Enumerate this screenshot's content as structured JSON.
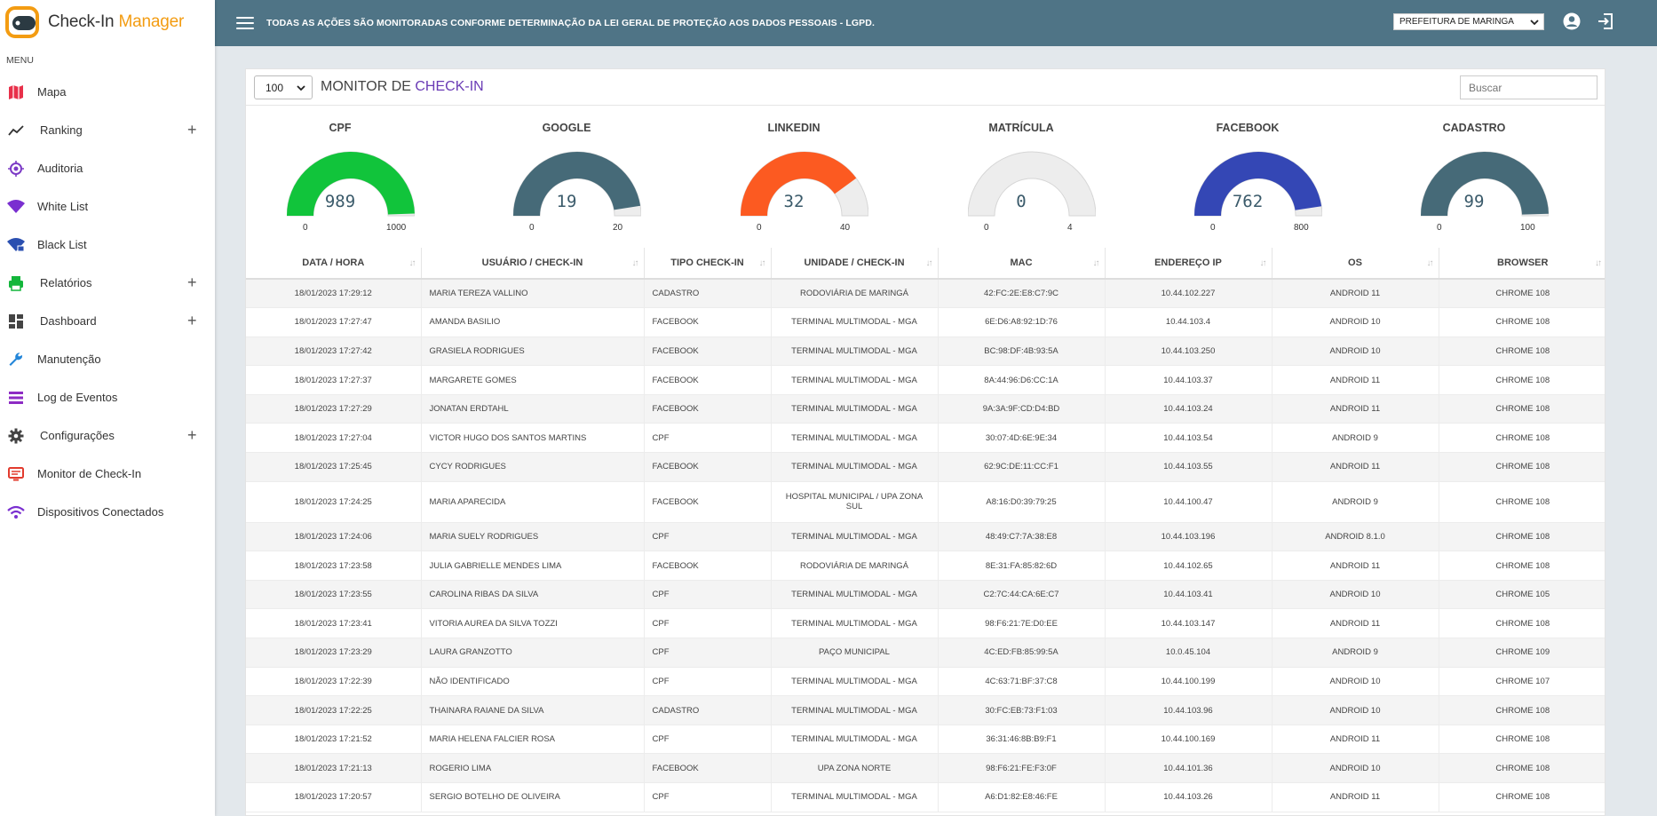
{
  "app": {
    "title_main": "Check-In ",
    "title_accent": "Manager"
  },
  "menu": {
    "header": "MENU",
    "items": [
      {
        "label": "Mapa",
        "icon": "map-icon",
        "expandable": false
      },
      {
        "label": "Ranking",
        "icon": "trending-icon",
        "expandable": true
      },
      {
        "label": "Auditoria",
        "icon": "target-icon",
        "expandable": false
      },
      {
        "label": "White List",
        "icon": "wifi-icon",
        "expandable": false
      },
      {
        "label": "Black List",
        "icon": "wifi-lock-icon",
        "expandable": false
      },
      {
        "label": "Relatórios",
        "icon": "printer-icon",
        "expandable": true
      },
      {
        "label": "Dashboard",
        "icon": "dashboard-icon",
        "expandable": true
      },
      {
        "label": "Manutenção",
        "icon": "wrench-icon",
        "expandable": false
      },
      {
        "label": "Log de Eventos",
        "icon": "list-icon",
        "expandable": false
      },
      {
        "label": "Configurações",
        "icon": "gear-icon",
        "expandable": true
      },
      {
        "label": "Monitor de Check-In",
        "icon": "monitor-icon",
        "expandable": false
      },
      {
        "label": "Dispositivos Conectados",
        "icon": "wifi-icon",
        "expandable": false
      }
    ]
  },
  "topbar": {
    "notice": "TODAS AS AÇÕES SÃO MONITORADAS CONFORME DETERMINAÇÃO DA LEI GERAL DE PROTEÇÃO AOS DADOS PESSOAIS - LGPD.",
    "city": "PREFEITURA DE MARINGA"
  },
  "card": {
    "page_size": "100",
    "title_main": "MONITOR DE ",
    "title_accent": "CHECK-IN",
    "search_placeholder": "Buscar"
  },
  "gauges": [
    {
      "label": "CPF",
      "value": 989,
      "min": 0,
      "max": 1000,
      "color": "#11c43b"
    },
    {
      "label": "GOOGLE",
      "value": 19,
      "min": 0,
      "max": 20,
      "color": "#466a78"
    },
    {
      "label": "LINKEDIN",
      "value": 32,
      "min": 0,
      "max": 40,
      "color": "#fc5a21"
    },
    {
      "label": "MATRÍCULA",
      "value": 0,
      "min": 0,
      "max": 4,
      "color": "#466a78"
    },
    {
      "label": "FACEBOOK",
      "value": 762,
      "min": 0,
      "max": 800,
      "color": "#3447b5"
    },
    {
      "label": "CADASTRO",
      "value": 99,
      "min": 0,
      "max": 100,
      "color": "#466a78"
    }
  ],
  "table": {
    "columns": [
      "DATA / HORA",
      "USUÁRIO / CHECK-IN",
      "TIPO CHECK-IN",
      "UNIDADE / CHECK-IN",
      "MAC",
      "ENDEREÇO IP",
      "OS",
      "BROWSER"
    ],
    "rows": [
      [
        "18/01/2023  17:29:12",
        "MARIA TEREZA VALLINO",
        "CADASTRO",
        "RODOVIÁRIA DE MARINGÁ",
        "42:FC:2E:E8:C7:9C",
        "10.44.102.227",
        "ANDROID 11",
        "CHROME 108"
      ],
      [
        "18/01/2023  17:27:47",
        "AMANDA BASILIO",
        "FACEBOOK",
        "TERMINAL MULTIMODAL - MGA",
        "6E:D6:A8:92:1D:76",
        "10.44.103.4",
        "ANDROID 10",
        "CHROME 108"
      ],
      [
        "18/01/2023  17:27:42",
        "GRASIELA RODRIGUES",
        "FACEBOOK",
        "TERMINAL MULTIMODAL - MGA",
        "BC:98:DF:4B:93:5A",
        "10.44.103.250",
        "ANDROID 10",
        "CHROME 108"
      ],
      [
        "18/01/2023  17:27:37",
        "MARGARETE GOMES",
        "FACEBOOK",
        "TERMINAL MULTIMODAL - MGA",
        "8A:44:96:D6:CC:1A",
        "10.44.103.37",
        "ANDROID 11",
        "CHROME 108"
      ],
      [
        "18/01/2023  17:27:29",
        "JONATAN ERDTAHL",
        "FACEBOOK",
        "TERMINAL MULTIMODAL - MGA",
        "9A:3A:9F:CD:D4:BD",
        "10.44.103.24",
        "ANDROID 11",
        "CHROME 108"
      ],
      [
        "18/01/2023  17:27:04",
        "VICTOR HUGO DOS SANTOS MARTINS",
        "CPF",
        "TERMINAL MULTIMODAL - MGA",
        "30:07:4D:6E:9E:34",
        "10.44.103.54",
        "ANDROID 9",
        "CHROME 108"
      ],
      [
        "18/01/2023  17:25:45",
        "CYCY RODRIGUES",
        "FACEBOOK",
        "TERMINAL MULTIMODAL - MGA",
        "62:9C:DE:11:CC:F1",
        "10.44.103.55",
        "ANDROID 11",
        "CHROME 108"
      ],
      [
        "18/01/2023  17:24:25",
        "MARIA APARECIDA",
        "FACEBOOK",
        "HOSPITAL MUNICIPAL / UPA ZONA SUL",
        "A8:16:D0:39:79:25",
        "10.44.100.47",
        "ANDROID 9",
        "CHROME 108"
      ],
      [
        "18/01/2023  17:24:06",
        "MARIA SUELY RODRIGUES",
        "CPF",
        "TERMINAL MULTIMODAL - MGA",
        "48:49:C7:7A:38:E8",
        "10.44.103.196",
        "ANDROID 8.1.0",
        "CHROME 108"
      ],
      [
        "18/01/2023  17:23:58",
        "JULIA GABRIELLE MENDES LIMA",
        "FACEBOOK",
        "RODOVIÁRIA DE MARINGÁ",
        "8E:31:FA:85:82:6D",
        "10.44.102.65",
        "ANDROID 11",
        "CHROME 108"
      ],
      [
        "18/01/2023  17:23:55",
        "CAROLINA RIBAS DA SILVA",
        "CPF",
        "TERMINAL MULTIMODAL - MGA",
        "C2:7C:44:CA:6E:C7",
        "10.44.103.41",
        "ANDROID 10",
        "CHROME 105"
      ],
      [
        "18/01/2023  17:23:41",
        "VITORIA AUREA DA SILVA TOZZI",
        "CPF",
        "TERMINAL MULTIMODAL - MGA",
        "98:F6:21:7E:D0:EE",
        "10.44.103.147",
        "ANDROID 11",
        "CHROME 108"
      ],
      [
        "18/01/2023  17:23:29",
        "LAURA GRANZOTTO",
        "CPF",
        "PAÇO MUNICIPAL",
        "4C:ED:FB:85:99:5A",
        "10.0.45.104",
        "ANDROID 9",
        "CHROME 109"
      ],
      [
        "18/01/2023  17:22:39",
        "NÃO IDENTIFICADO",
        "CPF",
        "TERMINAL MULTIMODAL - MGA",
        "4C:63:71:BF:37:C8",
        "10.44.100.199",
        "ANDROID 10",
        "CHROME 107"
      ],
      [
        "18/01/2023  17:22:25",
        "THAINARA RAIANE DA SILVA",
        "CADASTRO",
        "TERMINAL MULTIMODAL - MGA",
        "30:FC:EB:73:F1:03",
        "10.44.103.96",
        "ANDROID 10",
        "CHROME 108"
      ],
      [
        "18/01/2023  17:21:52",
        "MARIA HELENA FALCIER ROSA",
        "CPF",
        "TERMINAL MULTIMODAL - MGA",
        "36:31:46:8B:B9:F1",
        "10.44.100.169",
        "ANDROID 11",
        "CHROME 108"
      ],
      [
        "18/01/2023  17:21:13",
        "ROGERIO LIMA",
        "FACEBOOK",
        "UPA ZONA NORTE",
        "98:F6:21:FE:F3:0F",
        "10.44.101.36",
        "ANDROID 10",
        "CHROME 108"
      ],
      [
        "18/01/2023  17:20:57",
        "SERGIO BOTELHO DE OLIVEIRA",
        "CPF",
        "TERMINAL MULTIMODAL - MGA",
        "A6:D1:82:E8:46:FE",
        "10.44.103.26",
        "ANDROID 11",
        "CHROME 108"
      ]
    ]
  }
}
